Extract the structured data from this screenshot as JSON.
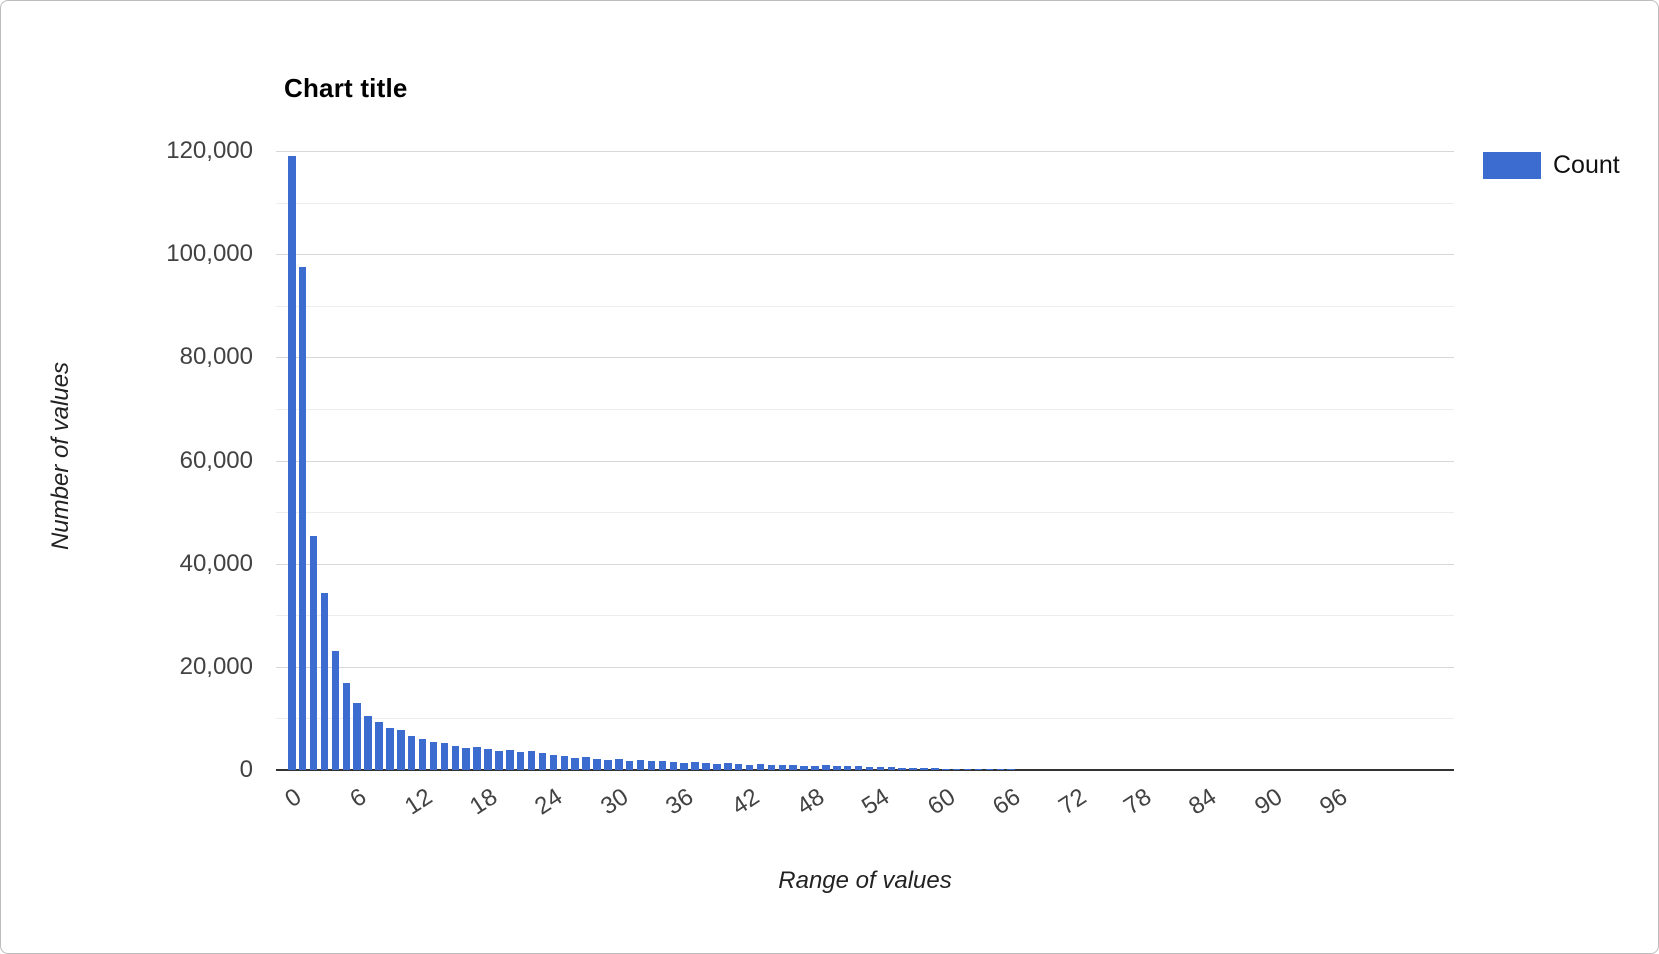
{
  "window": {
    "background": "#ffffff",
    "border_color": "#bdbdbd"
  },
  "chart": {
    "title": "Chart title",
    "legend": {
      "label": "Count",
      "swatch_color": "#3d6cd1"
    },
    "y_axis": {
      "title": "Number of values",
      "tick_labels": [
        "0",
        "20,000",
        "40,000",
        "60,000",
        "80,000",
        "100,000",
        "120,000"
      ],
      "label_step": 20000,
      "minor_gridline_step": 10000,
      "min": 0,
      "max": 120000
    },
    "x_axis": {
      "title": "Range of values",
      "tick_labels": [
        "0",
        "6",
        "12",
        "18",
        "24",
        "30",
        "36",
        "42",
        "48",
        "54",
        "60",
        "66",
        "72",
        "78",
        "84",
        "90",
        "96"
      ],
      "tick_every": 6
    }
  },
  "chart_data": {
    "type": "bar",
    "title": "Chart title",
    "xlabel": "Range of values",
    "ylabel": "Number of values",
    "legend_entries": [
      "Count"
    ],
    "legend_position": "right",
    "bar_color": "#3d6cd1",
    "grid": true,
    "ylim": [
      0,
      120000
    ],
    "x": [
      0,
      1,
      2,
      3,
      4,
      5,
      6,
      7,
      8,
      9,
      10,
      11,
      12,
      13,
      14,
      15,
      16,
      17,
      18,
      19,
      20,
      21,
      22,
      23,
      24,
      25,
      26,
      27,
      28,
      29,
      30,
      31,
      32,
      33,
      34,
      35,
      36,
      37,
      38,
      39,
      40,
      41,
      42,
      43,
      44,
      45,
      46,
      47,
      48,
      49,
      50,
      51,
      52,
      53,
      54,
      55,
      56,
      57,
      58,
      59,
      60,
      61,
      62,
      63,
      64,
      65,
      66,
      67,
      68,
      69,
      70,
      71,
      72,
      73,
      74,
      75,
      76,
      77,
      78,
      79,
      80,
      81,
      82,
      83,
      84,
      85,
      86,
      87,
      88,
      89,
      90,
      91,
      92,
      93,
      94,
      95,
      96,
      97,
      98,
      99
    ],
    "values": [
      119000,
      97500,
      45300,
      34400,
      23000,
      16800,
      13000,
      10500,
      9300,
      8100,
      7700,
      6600,
      6100,
      5500,
      5250,
      4700,
      4300,
      4450,
      4150,
      3600,
      3950,
      3500,
      3700,
      3200,
      3000,
      2650,
      2300,
      2500,
      2150,
      1900,
      2100,
      1800,
      1900,
      1650,
      1750,
      1500,
      1400,
      1550,
      1300,
      1200,
      1350,
      1150,
      1050,
      1200,
      1000,
      900,
      1000,
      850,
      800,
      900,
      780,
      700,
      760,
      620,
      560,
      610,
      480,
      420,
      450,
      350,
      280,
      230,
      180,
      140,
      100,
      70,
      40,
      0,
      0,
      0,
      0,
      0,
      0,
      0,
      0,
      0,
      0,
      0,
      0,
      0,
      0,
      0,
      0,
      0,
      0,
      0,
      0,
      0,
      0,
      0,
      0,
      0,
      0,
      0,
      0,
      0,
      0,
      0,
      0,
      0
    ]
  }
}
